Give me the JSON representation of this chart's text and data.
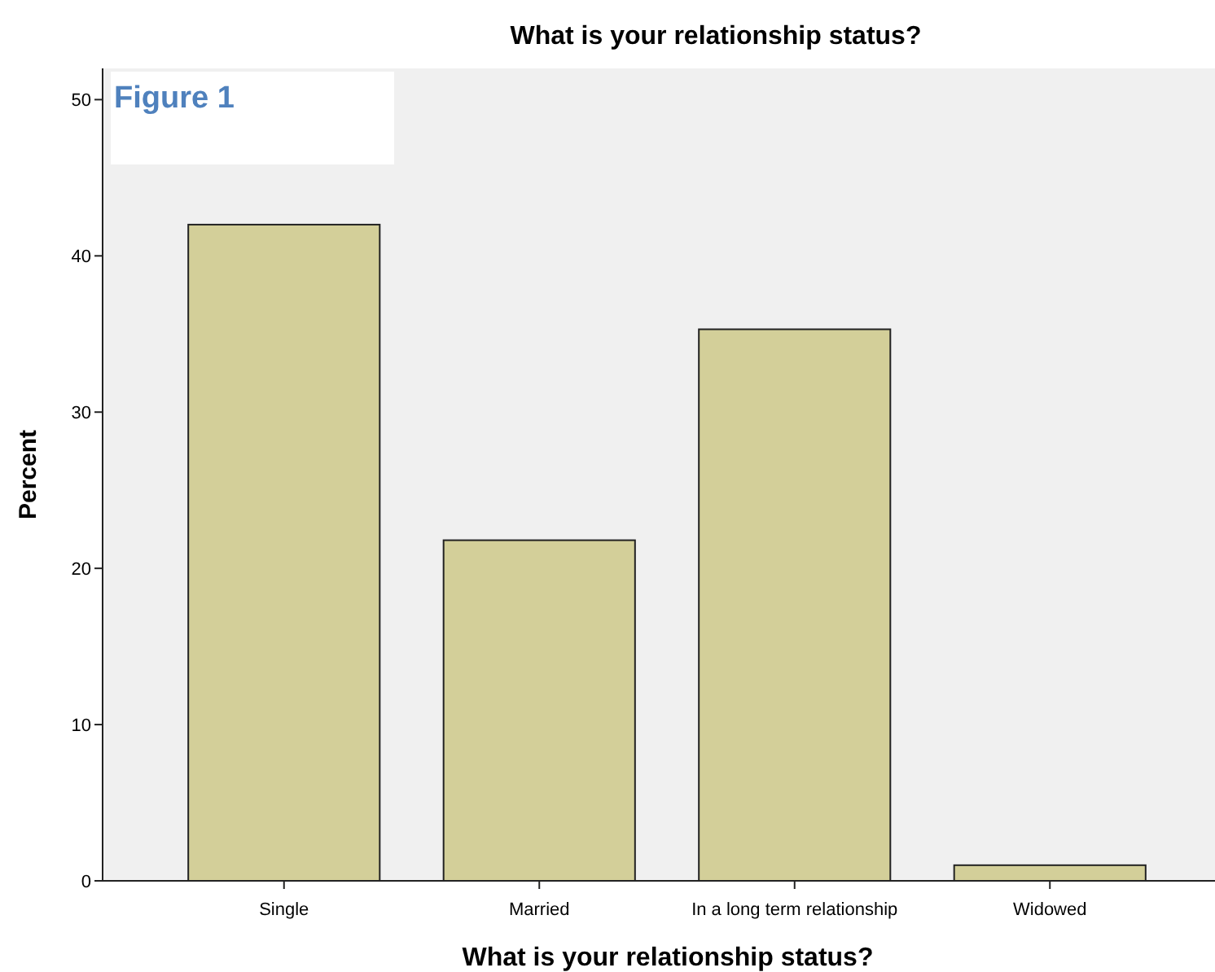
{
  "chart_data": {
    "type": "bar",
    "title": "What is your relationship status?",
    "xlabel": "What is your relationship status?",
    "ylabel": "Percent",
    "categories": [
      "Single",
      "Married",
      "In a long term relationship",
      "Widowed"
    ],
    "values": [
      42,
      21.8,
      35.3,
      1
    ],
    "color": "#d3cf99",
    "ylim": [
      0,
      52
    ],
    "yticks": [
      0,
      10,
      20,
      30,
      40,
      50
    ],
    "grid": false,
    "annotations": [
      "Figure 1"
    ]
  }
}
